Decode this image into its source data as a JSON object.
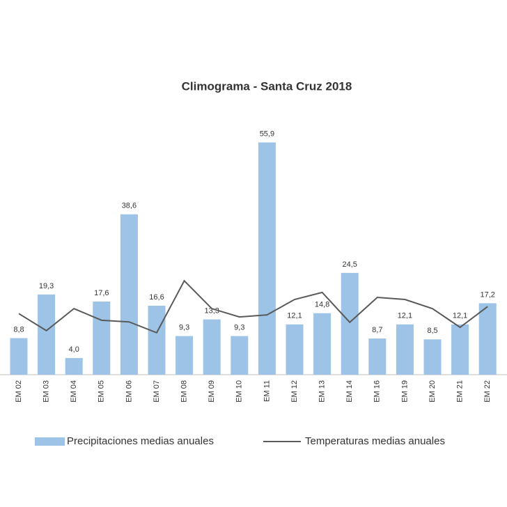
{
  "chart_data": {
    "type": "bar_line",
    "title": "Climograma - Santa Cruz 2018",
    "categories": [
      "EM 02",
      "EM 03",
      "EM 04",
      "EM 05",
      "EM 06",
      "EM 07",
      "EM 08",
      "EM 09",
      "EM 10",
      "EM 11",
      "EM 12",
      "EM 13",
      "EM 14",
      "EM 16",
      "EM 19",
      "EM 20",
      "EM 21",
      "EM 22"
    ],
    "series": [
      {
        "name": "Precipitaciones medias anuales",
        "color": "#9dc3e6",
        "kind": "bar",
        "values": [
          8.8,
          19.3,
          4.0,
          17.6,
          38.6,
          16.6,
          9.3,
          13.3,
          9.3,
          55.9,
          12.1,
          14.8,
          24.5,
          8.7,
          12.1,
          8.5,
          12.1,
          17.2
        ],
        "value_labels": [
          "8,8",
          "19,3",
          "4,0",
          "17,6",
          "38,6",
          "16,6",
          "9,3",
          "13,3",
          "9,3",
          "55,9",
          "12,1",
          "14,8",
          "24,5",
          "8,7",
          "12,1",
          "8,5",
          "12,1",
          "17,2"
        ]
      },
      {
        "name": "Temperaturas medias anuales",
        "color": "#595959",
        "kind": "line",
        "values": [
          14.7,
          10.6,
          15.9,
          13.1,
          12.7,
          10.1,
          22.6,
          15.9,
          13.9,
          14.4,
          18.1,
          19.8,
          12.6,
          18.6,
          18.1,
          15.9,
          11.4,
          16.4
        ]
      }
    ],
    "ylim": [
      0,
      58
    ]
  }
}
